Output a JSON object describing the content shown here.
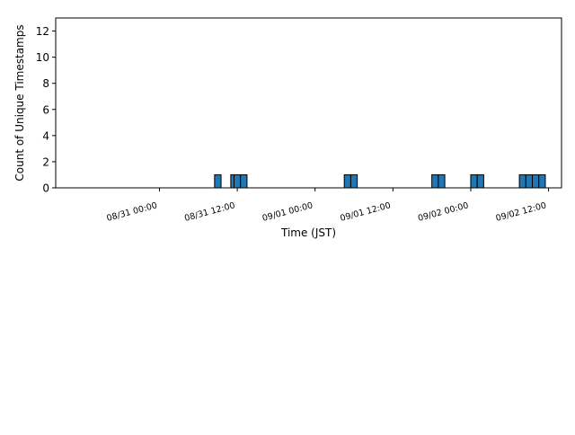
{
  "chart_data": {
    "type": "bar",
    "title": "",
    "xlabel": "Time (JST)",
    "ylabel": "Count of Unique Timestamps",
    "ylim": [
      0,
      13
    ],
    "yticks": [
      0,
      2,
      4,
      6,
      8,
      10,
      12
    ],
    "xlim": [
      "2018-08-30 08:00",
      "2018-09-02 14:00"
    ],
    "xticks": [
      {
        "t": "2018-08-31 00:00",
        "label": "08/31 00:00"
      },
      {
        "t": "2018-08-31 12:00",
        "label": "08/31 12:00"
      },
      {
        "t": "2018-09-01 00:00",
        "label": "09/01 00:00"
      },
      {
        "t": "2018-09-01 12:00",
        "label": "09/01 12:00"
      },
      {
        "t": "2018-09-02 00:00",
        "label": "09/02 00:00"
      },
      {
        "t": "2018-09-02 12:00",
        "label": "09/02 12:00"
      }
    ],
    "bin_width_hours": 1,
    "bars": [
      {
        "t": "2018-08-31 09:00",
        "value": 1
      },
      {
        "t": "2018-08-31 11:30",
        "value": 1
      },
      {
        "t": "2018-08-31 12:00",
        "value": 1
      },
      {
        "t": "2018-08-31 13:00",
        "value": 1
      },
      {
        "t": "2018-09-01 05:00",
        "value": 1
      },
      {
        "t": "2018-09-01 06:00",
        "value": 1
      },
      {
        "t": "2018-09-01 18:30",
        "value": 1
      },
      {
        "t": "2018-09-01 19:30",
        "value": 1
      },
      {
        "t": "2018-09-02 00:30",
        "value": 1
      },
      {
        "t": "2018-09-02 01:30",
        "value": 1
      },
      {
        "t": "2018-09-02 08:00",
        "value": 1
      },
      {
        "t": "2018-09-02 09:00",
        "value": 1
      },
      {
        "t": "2018-09-02 10:00",
        "value": 1
      },
      {
        "t": "2018-09-02 11:00",
        "value": 1
      }
    ],
    "bar_color": "#1f77b4",
    "edge_color": "#000000",
    "grid": false,
    "legend": "none"
  }
}
